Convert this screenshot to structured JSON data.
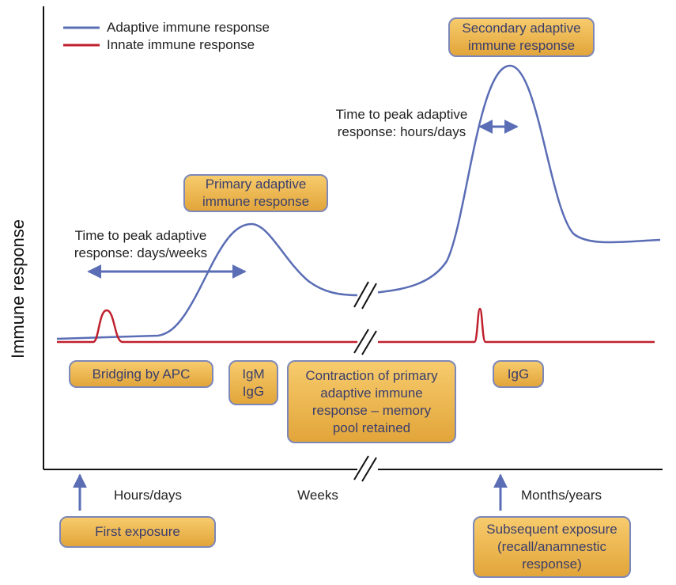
{
  "y_axis_label": "Immune response",
  "legend": [
    {
      "label": "Adaptive immune response"
    },
    {
      "label": "Innate immune response"
    }
  ],
  "boxes": [
    {
      "lines": [
        "Secondary adaptive",
        "immune response"
      ]
    },
    {
      "lines": [
        "Primary adaptive",
        "immune response"
      ]
    },
    {
      "lines": [
        "Bridging by APC"
      ]
    },
    {
      "lines": [
        "IgM",
        "IgG"
      ]
    },
    {
      "lines": [
        "Contraction of primary",
        "adaptive immune",
        "response – memory",
        "pool retained"
      ]
    },
    {
      "lines": [
        "IgG"
      ]
    },
    {
      "lines": [
        "First exposure"
      ]
    },
    {
      "lines": [
        "Subsequent exposure",
        "(recall/anamnestic",
        "response)"
      ]
    }
  ],
  "annotations": [
    {
      "lines": [
        "Time to peak adaptive",
        "response: days/weeks"
      ]
    },
    {
      "lines": [
        "Time to peak adaptive",
        "response: hours/days"
      ]
    }
  ],
  "x_labels": [
    "Hours/days",
    "Weeks",
    "Months/years"
  ]
}
